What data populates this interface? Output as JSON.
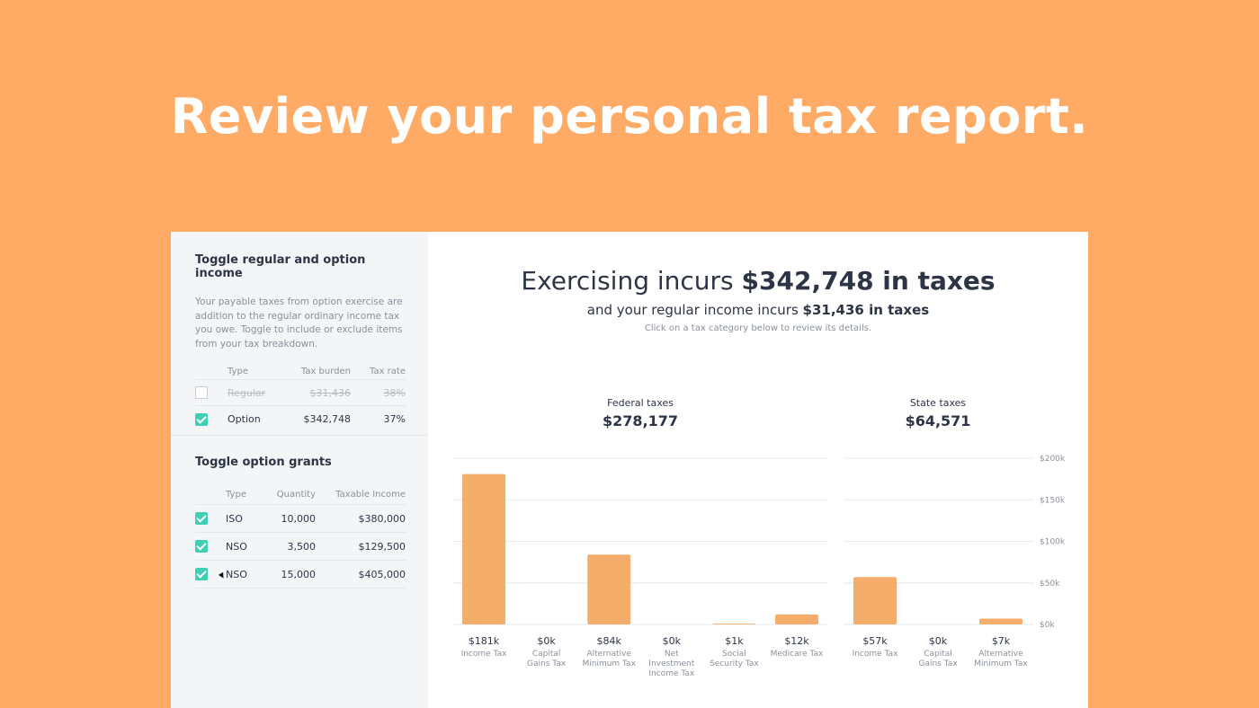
{
  "hero": {
    "title": "Review your personal tax report."
  },
  "sidebar": {
    "income": {
      "title": "Toggle regular and option income",
      "description": "Your payable taxes from option exercise are addition to the regular ordinary income tax you owe. Toggle to include or exclude items from your tax breakdown.",
      "headers": {
        "type": "Type",
        "burden": "Tax burden",
        "rate": "Tax rate"
      },
      "rows": [
        {
          "type": "Regular",
          "burden": "$31,436",
          "rate": "38%",
          "checked": false
        },
        {
          "type": "Option",
          "burden": "$342,748",
          "rate": "37%",
          "checked": true
        }
      ]
    },
    "grants": {
      "title": "Toggle option grants",
      "headers": {
        "type": "Type",
        "qty": "Quantity",
        "income": "Taxable Income"
      },
      "rows": [
        {
          "type": "ISO",
          "qty": "10,000",
          "income": "$380,000",
          "checked": true
        },
        {
          "type": "NSO",
          "qty": "3,500",
          "income": "$129,500",
          "checked": true
        },
        {
          "type": "NSO",
          "qty": "15,000",
          "income": "$405,000",
          "checked": true
        }
      ]
    }
  },
  "summary": {
    "line1_prefix": "Exercising incurs ",
    "line1_bold": "$342,748 in taxes",
    "line2_prefix": "and your regular income incurs ",
    "line2_bold": "$31,436 in taxes",
    "hint": "Click on a tax category below to review its details."
  },
  "groups": {
    "federal": {
      "title": "Federal taxes",
      "value": "$278,177"
    },
    "state": {
      "title": "State taxes",
      "value": "$64,571"
    }
  },
  "colors": {
    "accent": "#3fcfb5",
    "bar": "#F5AD6C",
    "background": "#FFAB66"
  },
  "chart_data": {
    "type": "bar",
    "ylim": [
      0,
      200000
    ],
    "y_ticks": [
      "$0k",
      "$50k",
      "$100k",
      "$150k",
      "$200k"
    ],
    "grid": true,
    "federal": {
      "categories": [
        "Income Tax",
        "Capital Gains Tax",
        "Alternative Minimum Tax",
        "Net Investment Income Tax",
        "Social Security Tax",
        "Medicare Tax"
      ],
      "values": [
        181000,
        0,
        84000,
        0,
        1000,
        12000
      ],
      "labels": [
        "$181k",
        "$0k",
        "$84k",
        "$0k",
        "$1k",
        "$12k"
      ]
    },
    "state": {
      "categories": [
        "Income Tax",
        "Capital Gains Tax",
        "Alternative Minimum Tax"
      ],
      "values": [
        57000,
        0,
        7000
      ],
      "labels": [
        "$57k",
        "$0k",
        "$7k"
      ]
    }
  }
}
